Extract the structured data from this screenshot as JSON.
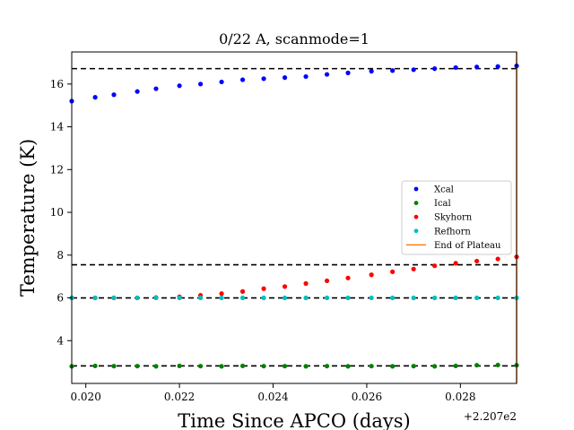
{
  "chart_data": {
    "type": "scatter",
    "title": "0/22 A, scanmode=1",
    "xlabel": "Time Since APCO (days)",
    "ylabel": "Temperature (K)",
    "x_offset_label": "+2.207e2",
    "xlim": [
      0.0197,
      0.0292
    ],
    "ylim": [
      2.0,
      17.5
    ],
    "x_ticks": [
      0.02,
      0.022,
      0.024,
      0.026,
      0.028
    ],
    "x_tick_labels": [
      "0.020",
      "0.022",
      "0.024",
      "0.026",
      "0.028"
    ],
    "y_ticks": [
      4,
      6,
      8,
      10,
      12,
      14,
      16
    ],
    "y_tick_labels": [
      "4",
      "6",
      "8",
      "10",
      "12",
      "14",
      "16"
    ],
    "grid": false,
    "legend_position": "center-right",
    "x": [
      0.0197,
      0.0202,
      0.0206,
      0.0211,
      0.0215,
      0.022,
      0.02245,
      0.0229,
      0.02335,
      0.0238,
      0.02425,
      0.0247,
      0.02515,
      0.0256,
      0.0261,
      0.02655,
      0.027,
      0.02745,
      0.0279,
      0.02835,
      0.0288,
      0.0292
    ],
    "series": [
      {
        "name": "Xcal",
        "color": "#0000ff",
        "marker": "dot",
        "values": [
          15.2,
          15.38,
          15.5,
          15.65,
          15.78,
          15.92,
          16.0,
          16.1,
          16.2,
          16.25,
          16.3,
          16.35,
          16.45,
          16.52,
          16.6,
          16.63,
          16.67,
          16.72,
          16.77,
          16.8,
          16.82,
          16.85
        ]
      },
      {
        "name": "Ical",
        "color": "#008000",
        "marker": "dot",
        "values": [
          2.8,
          2.82,
          2.81,
          2.81,
          2.8,
          2.82,
          2.81,
          2.8,
          2.82,
          2.81,
          2.81,
          2.8,
          2.81,
          2.8,
          2.81,
          2.8,
          2.81,
          2.8,
          2.82,
          2.85,
          2.86,
          2.85
        ]
      },
      {
        "name": "Skyhorn",
        "color": "#ff0000",
        "marker": "dot",
        "values": [
          6.0,
          6.0,
          6.0,
          6.0,
          6.02,
          6.05,
          6.12,
          6.2,
          6.3,
          6.43,
          6.53,
          6.67,
          6.8,
          6.93,
          7.08,
          7.22,
          7.35,
          7.5,
          7.62,
          7.72,
          7.82,
          7.92
        ]
      },
      {
        "name": "Refhorn",
        "color": "#00bfbf",
        "marker": "dot",
        "values": [
          6.0,
          6.0,
          6.0,
          6.0,
          6.0,
          6.0,
          6.0,
          6.0,
          6.0,
          6.0,
          6.0,
          6.0,
          6.0,
          6.0,
          6.0,
          6.0,
          6.0,
          6.0,
          6.0,
          6.0,
          6.0,
          6.0
        ]
      }
    ],
    "hlines": [
      {
        "y": 16.72,
        "style": "dashed",
        "color": "#000000"
      },
      {
        "y": 7.55,
        "style": "dashed",
        "color": "#000000"
      },
      {
        "y": 6.0,
        "style": "dashed",
        "color": "#000000"
      },
      {
        "y": 2.82,
        "style": "dashed",
        "color": "#000000"
      }
    ],
    "vlines": [
      {
        "name": "End of Plateau",
        "x": 0.0292,
        "color": "#ff7f0e",
        "style": "solid"
      }
    ]
  }
}
